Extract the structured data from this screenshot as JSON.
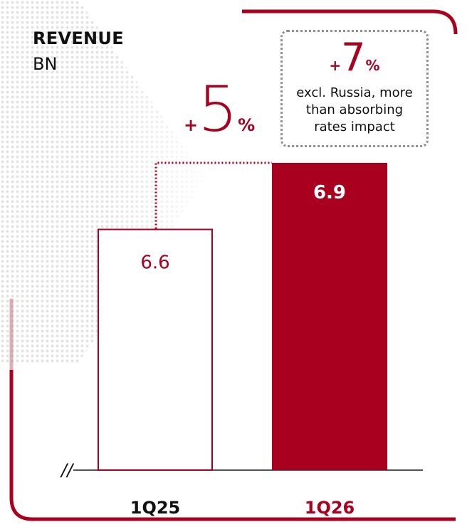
{
  "chart_data": {
    "type": "bar",
    "title": "REVENUE",
    "unit": "BN",
    "categories": [
      "1Q25",
      "1Q26"
    ],
    "values": [
      6.6,
      6.9
    ],
    "value_labels": [
      "6.6",
      "6.9"
    ],
    "bar_styles": [
      "outline",
      "filled"
    ],
    "axis_break": "//",
    "change": {
      "sign": "+",
      "value": "5",
      "unit": "%"
    },
    "callout": {
      "sign": "+",
      "value": "7",
      "unit": "%",
      "note_lines": [
        "excl. Russia, more",
        "than absorbing",
        "rates impact"
      ]
    }
  },
  "colors": {
    "accent": "#a8001e",
    "text": "#111111",
    "axis": "#555555",
    "border_gray": "#8f8f8f"
  }
}
